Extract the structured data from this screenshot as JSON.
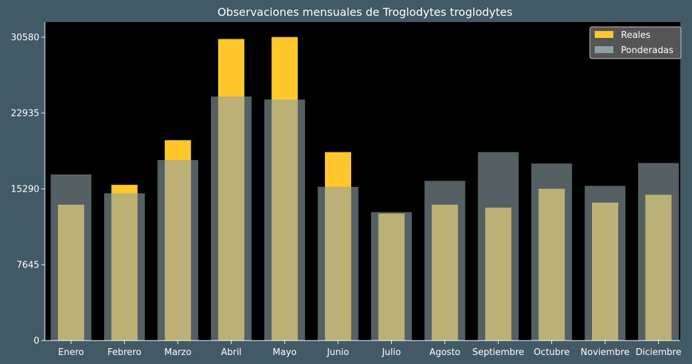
{
  "chart_data": {
    "type": "bar",
    "title": "Observaciones mensuales de Troglodytes troglodytes",
    "xlabel": "",
    "ylabel": "",
    "categories": [
      "Enero",
      "Febrero",
      "Marzo",
      "Abril",
      "Mayo",
      "Junio",
      "Julio",
      "Agosto",
      "Septiembre",
      "Octubre",
      "Noviembre",
      "Diciembre"
    ],
    "series": [
      {
        "name": "Reales",
        "color": "#ffc72c",
        "values": [
          13700,
          15700,
          20200,
          30400,
          30600,
          19000,
          12800,
          13700,
          13400,
          15300,
          13900,
          14700
        ]
      },
      {
        "name": "Ponderadas",
        "color": "#8da0a6",
        "values": [
          16750,
          14850,
          18200,
          24600,
          24300,
          15500,
          12950,
          16100,
          19000,
          17850,
          15600,
          17900
        ]
      }
    ],
    "ylim": [
      0,
      30580
    ],
    "yticks": [
      0,
      7645,
      15290,
      22935,
      30580
    ],
    "grid": false,
    "legend_position": "top-right",
    "plot_background": "#000000"
  }
}
